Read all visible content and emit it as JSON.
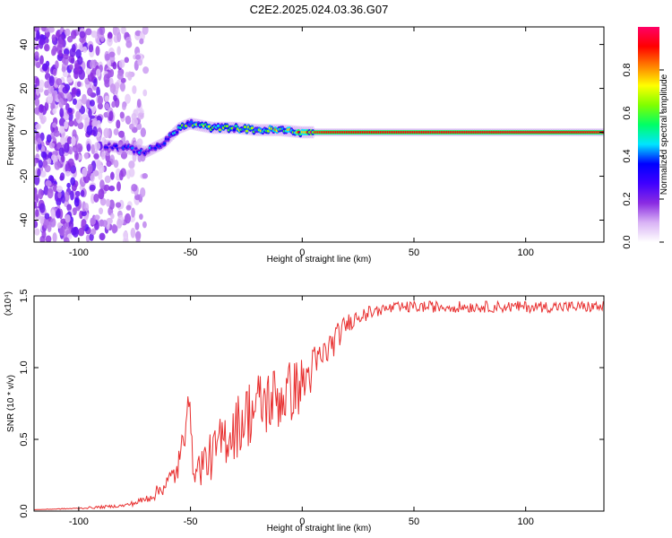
{
  "title": "C2E2.2025.024.03.36.G07",
  "chart_data": [
    {
      "type": "heatmap",
      "title": "C2E2.2025.024.03.36.G07",
      "xlabel": "Height of straight line (km)",
      "ylabel": "Frequency (Hz)",
      "xlim": [
        -120,
        135
      ],
      "ylim": [
        -50,
        48
      ],
      "xticks": [
        -100,
        -50,
        0,
        50,
        100
      ],
      "yticks": [
        -40,
        -20,
        0,
        20,
        40
      ],
      "colorbar": {
        "label": "Normalized spectral amplitude",
        "range": [
          0,
          1
        ],
        "ticks": [
          "0.0",
          "0.2",
          "0.4",
          "0.6",
          "0.8"
        ],
        "tick_values": [
          0,
          0.2,
          0.4,
          0.6,
          0.8
        ],
        "colors": [
          "#ffffff",
          "#d9b3f5",
          "#8a2be2",
          "#3f00ff",
          "#0000ff",
          "#00e5ff",
          "#00ff66",
          "#7fff00",
          "#ffff00",
          "#ff8000",
          "#ff0000",
          "#ff0066"
        ]
      },
      "signal_trace": {
        "x": [
          -88,
          -80,
          -70,
          -62,
          -55,
          -50,
          -45,
          -40,
          -30,
          -20,
          -10,
          0,
          10,
          50,
          100,
          135
        ],
        "frequency": [
          -6,
          -7,
          -9,
          -5,
          2,
          4,
          3,
          2,
          2,
          1,
          1,
          0,
          0,
          0,
          0,
          0
        ],
        "amplitude": [
          0.3,
          0.35,
          0.4,
          0.45,
          0.55,
          0.6,
          0.65,
          0.6,
          0.6,
          0.7,
          0.75,
          0.85,
          0.9,
          0.92,
          0.92,
          0.9
        ]
      },
      "noise_region": {
        "x_range": [
          -120,
          -70
        ],
        "amplitude_range": [
          0,
          0.2
        ]
      }
    },
    {
      "type": "line",
      "xlabel": "Height of straight line (km)",
      "ylabel": "SNR (10 * v/v)",
      "multiplier_label": "(x10⁴)",
      "xlim": [
        -120,
        135
      ],
      "ylim": [
        0,
        1.5
      ],
      "xticks": [
        -100,
        -50,
        0,
        50,
        100
      ],
      "yticks": [
        "0.0",
        "0.5",
        "1.0",
        "1.5"
      ],
      "ytick_values": [
        0,
        0.5,
        1.0,
        1.5
      ],
      "line_color": "#e83030",
      "series": [
        {
          "x": [
            -120,
            -100,
            -90,
            -80,
            -75,
            -70,
            -65,
            -60,
            -56,
            -53,
            -51,
            -50,
            -49,
            -47,
            -45,
            -40,
            -35,
            -30,
            -25,
            -20,
            -15,
            -10,
            -5,
            0,
            5,
            10,
            15,
            20,
            25,
            30,
            35,
            40,
            50,
            60,
            70,
            80,
            90,
            100,
            110,
            120,
            135
          ],
          "y": [
            0.01,
            0.02,
            0.03,
            0.04,
            0.06,
            0.09,
            0.14,
            0.22,
            0.3,
            0.5,
            0.88,
            0.62,
            0.35,
            0.3,
            0.36,
            0.42,
            0.55,
            0.62,
            0.72,
            0.78,
            0.82,
            0.84,
            0.88,
            0.92,
            1.03,
            1.12,
            1.22,
            1.32,
            1.37,
            1.4,
            1.42,
            1.43,
            1.44,
            1.44,
            1.44,
            1.44,
            1.44,
            1.44,
            1.44,
            1.44,
            1.44
          ],
          "noise": [
            0,
            0.005,
            0.01,
            0.01,
            0.02,
            0.03,
            0.05,
            0.07,
            0.1,
            0.15,
            0.05,
            0.12,
            0.1,
            0.12,
            0.15,
            0.17,
            0.2,
            0.22,
            0.24,
            0.25,
            0.25,
            0.24,
            0.22,
            0.2,
            0.16,
            0.12,
            0.1,
            0.07,
            0.05,
            0.05,
            0.04,
            0.04,
            0.04,
            0.04,
            0.04,
            0.04,
            0.04,
            0.04,
            0.04,
            0.04,
            0.04
          ]
        }
      ]
    }
  ]
}
